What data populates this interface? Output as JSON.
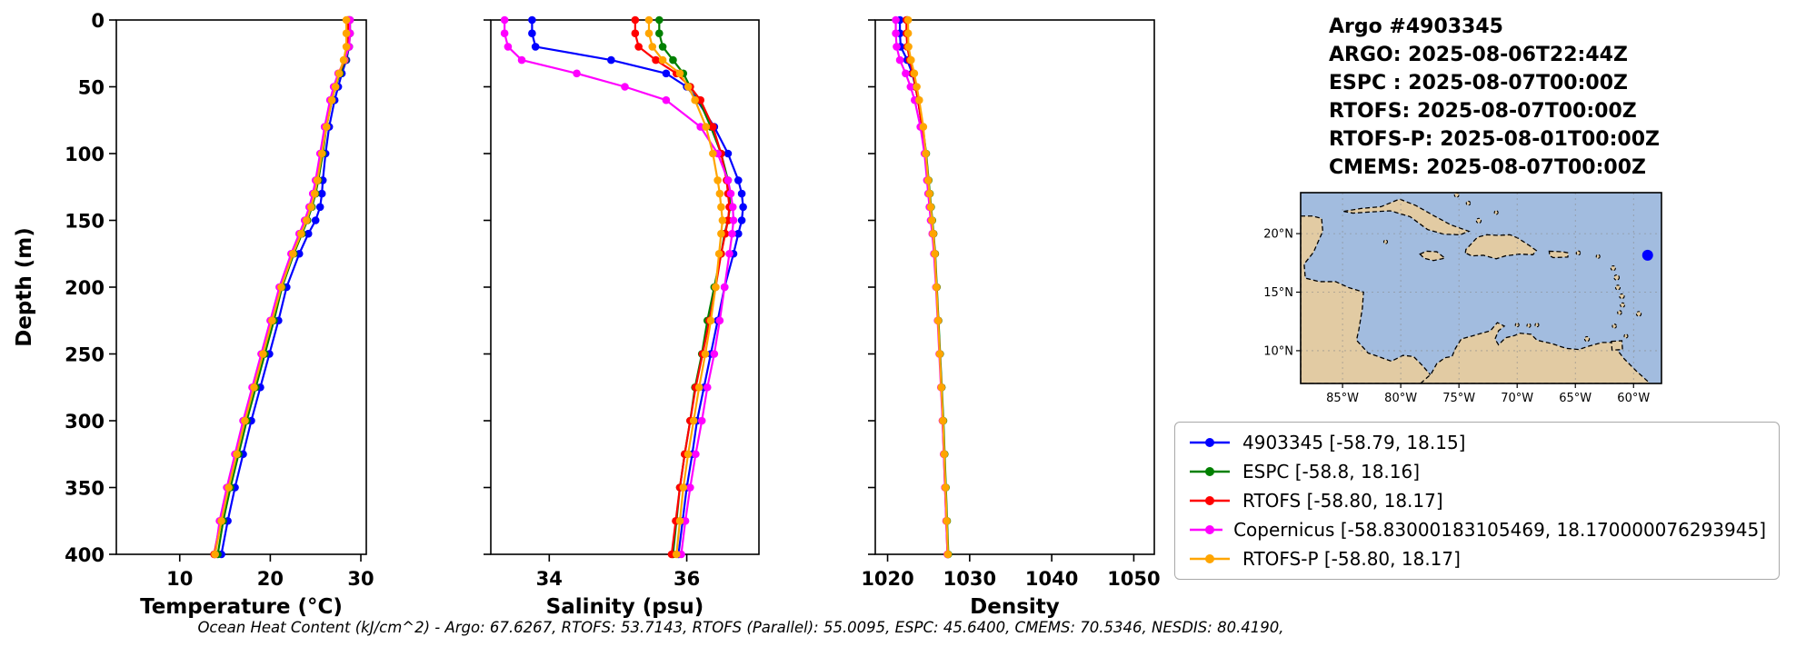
{
  "title_block": {
    "lines": [
      "Argo #4903345",
      "ARGO: 2025-08-06T22:44Z",
      "ESPC : 2025-08-07T00:00Z",
      "RTOFS: 2025-08-07T00:00Z",
      "RTOFS-P: 2025-08-01T00:00Z",
      "CMEMS: 2025-08-07T00:00Z"
    ]
  },
  "chart_data": {
    "type": "line",
    "depths": [
      0,
      10,
      20,
      30,
      40,
      50,
      60,
      80,
      100,
      120,
      130,
      140,
      150,
      160,
      175,
      200,
      225,
      250,
      275,
      300,
      325,
      350,
      375,
      400
    ],
    "charts": [
      {
        "id": "temperature",
        "xlabel": "Temperature (°C)",
        "xlim": [
          3.0,
          30.6
        ],
        "xticks": [
          10,
          20,
          30
        ],
        "ylabel": "Depth (m)",
        "ylim": [
          0,
          400
        ],
        "yticks": [
          0,
          50,
          100,
          150,
          200,
          250,
          300,
          350,
          400
        ],
        "series": [
          {
            "name": "4903345",
            "color": "#0000ff",
            "values": [
              28.7,
              28.7,
              28.7,
              28.4,
              27.9,
              27.5,
              27.1,
              26.5,
              26.1,
              25.8,
              25.7,
              25.5,
              25.0,
              24.2,
              23.2,
              21.8,
              20.9,
              19.9,
              18.9,
              17.9,
              17.0,
              16.1,
              15.3,
              14.6
            ]
          },
          {
            "name": "ESPC",
            "color": "#008000",
            "values": [
              28.8,
              28.8,
              28.7,
              28.3,
              27.7,
              27.2,
              26.8,
              26.2,
              25.8,
              25.3,
              25.0,
              24.6,
              24.1,
              23.5,
              22.6,
              21.3,
              20.4,
              19.4,
              18.4,
              17.4,
              16.5,
              15.6,
              14.8,
              14.2
            ]
          },
          {
            "name": "RTOFS",
            "color": "#ff0000",
            "values": [
              28.6,
              28.6,
              28.5,
              28.2,
              27.6,
              27.1,
              26.7,
              26.1,
              25.6,
              25.1,
              24.8,
              24.4,
              23.9,
              23.3,
              22.4,
              21.1,
              20.1,
              19.1,
              18.1,
              17.1,
              16.2,
              15.3,
              14.5,
              13.8
            ]
          },
          {
            "name": "Copernicus",
            "color": "#ff00ff",
            "values": [
              28.8,
              28.8,
              28.7,
              28.2,
              27.5,
              27.0,
              26.6,
              26.0,
              25.5,
              25.0,
              24.7,
              24.3,
              23.8,
              23.2,
              22.3,
              21.0,
              20.0,
              19.0,
              18.0,
              17.0,
              16.1,
              15.2,
              14.4,
              13.9
            ]
          },
          {
            "name": "RTOFS-P",
            "color": "#ffa500",
            "values": [
              28.4,
              28.4,
              28.4,
              28.1,
              27.6,
              27.2,
              26.8,
              26.2,
              25.7,
              25.2,
              24.9,
              24.5,
              24.0,
              23.4,
              22.5,
              21.2,
              20.2,
              19.2,
              18.2,
              17.2,
              16.3,
              15.4,
              14.6,
              13.9
            ]
          }
        ]
      },
      {
        "id": "salinity",
        "xlabel": "Salinity (psu)",
        "xlim": [
          33.15,
          37.05
        ],
        "xticks": [
          34,
          36
        ],
        "ylim": [
          0,
          400
        ],
        "yticks": [
          0,
          50,
          100,
          150,
          200,
          250,
          300,
          350,
          400
        ],
        "series": [
          {
            "name": "4903345",
            "color": "#0000ff",
            "values": [
              33.75,
              33.75,
              33.8,
              34.9,
              35.7,
              36.0,
              36.15,
              36.4,
              36.6,
              36.75,
              36.8,
              36.82,
              36.8,
              36.75,
              36.68,
              36.55,
              36.45,
              36.35,
              36.25,
              36.15,
              36.08,
              36.0,
              35.94,
              35.88
            ]
          },
          {
            "name": "ESPC",
            "color": "#008000",
            "values": [
              35.6,
              35.6,
              35.65,
              35.8,
              35.95,
              36.05,
              36.18,
              36.35,
              36.5,
              36.6,
              36.62,
              36.63,
              36.6,
              36.55,
              36.5,
              36.4,
              36.3,
              36.22,
              36.12,
              36.05,
              35.97,
              35.9,
              35.85,
              35.8
            ]
          },
          {
            "name": "RTOFS",
            "color": "#ff0000",
            "values": [
              35.25,
              35.25,
              35.3,
              35.55,
              35.85,
              36.05,
              36.2,
              36.38,
              36.5,
              36.58,
              36.6,
              36.62,
              36.6,
              36.56,
              36.5,
              36.42,
              36.33,
              36.23,
              36.13,
              36.05,
              35.97,
              35.9,
              35.84,
              35.78
            ]
          },
          {
            "name": "Copernicus",
            "color": "#ff00ff",
            "values": [
              33.35,
              33.35,
              33.4,
              33.6,
              34.4,
              35.1,
              35.7,
              36.2,
              36.45,
              36.6,
              36.64,
              36.67,
              36.68,
              36.66,
              36.62,
              36.55,
              36.48,
              36.4,
              36.3,
              36.22,
              36.13,
              36.05,
              35.98,
              35.92
            ]
          },
          {
            "name": "RTOFS-P",
            "color": "#ffa500",
            "values": [
              35.45,
              35.45,
              35.5,
              35.65,
              35.9,
              36.02,
              36.12,
              36.28,
              36.38,
              36.45,
              36.48,
              36.5,
              36.52,
              36.5,
              36.47,
              36.42,
              36.35,
              36.27,
              36.18,
              36.1,
              36.02,
              35.95,
              35.9,
              35.85
            ]
          }
        ]
      },
      {
        "id": "density",
        "xlabel": "Density",
        "xlim": [
          1018.5,
          1052.5
        ],
        "xticks": [
          1020,
          1030,
          1040,
          1050
        ],
        "ylim": [
          0,
          400
        ],
        "yticks": [
          0,
          50,
          100,
          150,
          200,
          250,
          300,
          350,
          400
        ],
        "series": [
          {
            "name": "4903345",
            "color": "#0000ff",
            "values": [
              1021.5,
              1021.5,
              1021.6,
              1022.4,
              1023.0,
              1023.4,
              1023.7,
              1024.2,
              1024.6,
              1024.9,
              1025.05,
              1025.2,
              1025.35,
              1025.5,
              1025.7,
              1025.95,
              1026.15,
              1026.35,
              1026.55,
              1026.75,
              1026.9,
              1027.05,
              1027.2,
              1027.35
            ]
          },
          {
            "name": "ESPC",
            "color": "#008000",
            "values": [
              1022.4,
              1022.4,
              1022.5,
              1022.8,
              1023.2,
              1023.5,
              1023.8,
              1024.3,
              1024.7,
              1025.0,
              1025.15,
              1025.3,
              1025.45,
              1025.6,
              1025.8,
              1026.0,
              1026.2,
              1026.4,
              1026.6,
              1026.8,
              1026.95,
              1027.1,
              1027.25,
              1027.4
            ]
          },
          {
            "name": "RTOFS",
            "color": "#ff0000",
            "values": [
              1022.3,
              1022.3,
              1022.4,
              1022.7,
              1023.1,
              1023.4,
              1023.7,
              1024.2,
              1024.6,
              1024.9,
              1025.05,
              1025.2,
              1025.35,
              1025.55,
              1025.75,
              1025.95,
              1026.15,
              1026.35,
              1026.55,
              1026.7,
              1026.85,
              1027.0,
              1027.15,
              1027.3
            ]
          },
          {
            "name": "Copernicus",
            "color": "#ff00ff",
            "values": [
              1021.0,
              1021.0,
              1021.1,
              1021.5,
              1022.2,
              1022.8,
              1023.3,
              1024.0,
              1024.5,
              1024.8,
              1024.95,
              1025.1,
              1025.25,
              1025.45,
              1025.65,
              1025.9,
              1026.1,
              1026.3,
              1026.5,
              1026.7,
              1026.85,
              1027.0,
              1027.15,
              1027.3
            ]
          },
          {
            "name": "RTOFS-P",
            "color": "#ffa500",
            "values": [
              1022.5,
              1022.5,
              1022.55,
              1022.85,
              1023.25,
              1023.55,
              1023.85,
              1024.35,
              1024.65,
              1024.95,
              1025.1,
              1025.25,
              1025.4,
              1025.55,
              1025.75,
              1025.95,
              1026.15,
              1026.35,
              1026.55,
              1026.75,
              1026.9,
              1027.05,
              1027.2,
              1027.35
            ]
          }
        ]
      }
    ]
  },
  "map": {
    "extent": {
      "lon_min": -88.6,
      "lon_max": -57.6,
      "lat_min": 7.2,
      "lat_max": 23.5
    },
    "lon_ticks": {
      "values": [
        -85,
        -80,
        -75,
        -70,
        -65,
        -60
      ],
      "labels": [
        "85°W",
        "80°W",
        "75°W",
        "70°W",
        "65°W",
        "60°W"
      ]
    },
    "lat_ticks": {
      "values": [
        20,
        15,
        10
      ],
      "labels": [
        "20°N",
        "15°N",
        "10°N"
      ]
    },
    "point": {
      "lon": -58.79,
      "lat": 18.15,
      "color": "#0000ff"
    },
    "ocean_color": "#a2bcdf",
    "land_color": "#e2cba3"
  },
  "legend": {
    "items": [
      {
        "label": "4903345 [-58.79, 18.15]",
        "color": "#0000ff"
      },
      {
        "label": "ESPC [-58.8, 18.16]",
        "color": "#008000"
      },
      {
        "label": "RTOFS [-58.80, 18.17]",
        "color": "#ff0000"
      },
      {
        "label": "Copernicus [-58.83000183105469, 18.170000076293945]",
        "color": "#ff00ff"
      },
      {
        "label": "RTOFS-P [-58.80, 18.17]",
        "color": "#ffa500"
      }
    ]
  },
  "footer": {
    "text": "Ocean Heat Content (kJ/cm^2) - Argo: 67.6267,  RTOFS: 53.7143,  RTOFS (Parallel): 55.0095,  ESPC: 45.6400,  CMEMS: 70.5346,  NESDIS: 80.4190,"
  }
}
